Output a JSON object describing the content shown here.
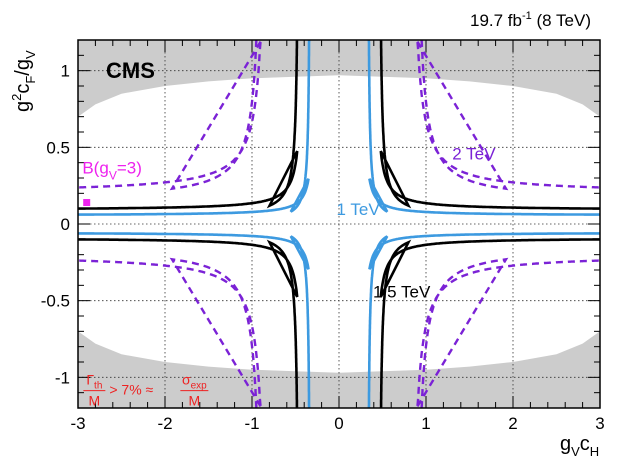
{
  "chart_data": {
    "type": "line",
    "lumi_label": "19.7 fb",
    "lumi_sup": "-1",
    "lumi_energy": " (8 TeV)",
    "experiment": "CMS",
    "xlabel": {
      "main": "g",
      "sub1": "V",
      "mid": "c",
      "sub2": "H"
    },
    "ylabel": {
      "pre": "g",
      "sup": "2",
      "mid": "c",
      "sub1": "F",
      "slash": "/g",
      "sub2": "V"
    },
    "xlim": [
      -3,
      3
    ],
    "ylim": [
      -1.2,
      1.2
    ],
    "x_ticks": [
      -3,
      -2,
      -1,
      0,
      1,
      2,
      3
    ],
    "y_ticks": [
      -1,
      -0.5,
      0,
      0.5,
      1
    ],
    "grid": true,
    "excluded_region": {
      "color": "#cccccc",
      "boundary": [
        [
          -3.0,
          0.7
        ],
        [
          -2.8,
          0.78
        ],
        [
          -2.5,
          0.85
        ],
        [
          -2.0,
          0.9
        ],
        [
          -1.5,
          0.93
        ],
        [
          -1.0,
          0.95
        ],
        [
          -0.5,
          0.96
        ],
        [
          0,
          0.97
        ],
        [
          0.5,
          0.96
        ],
        [
          1.0,
          0.95
        ],
        [
          1.5,
          0.93
        ],
        [
          2.0,
          0.9
        ],
        [
          2.5,
          0.85
        ],
        [
          2.8,
          0.78
        ],
        [
          3.0,
          0.7
        ]
      ]
    },
    "contours": [
      {
        "label": "1 TeV",
        "color": "#3d9ae0",
        "dash": false,
        "hx": 0.33,
        "hy": 0.055,
        "ox": 0.6,
        "oy": 0.09,
        "k": 0.028,
        "label_at": [
          0.22,
          0.06
        ]
      },
      {
        "label": "1.5 TeV",
        "color": "#000000",
        "dash": false,
        "hx": 0.46,
        "hy": 0.09,
        "ox": 0.6,
        "oy": 0.1,
        "k": 0.045,
        "label_at": [
          0.72,
          -0.48
        ]
      },
      {
        "label": "2 TeV",
        "color": "#7b22d6",
        "dash": true,
        "hx": 0.87,
        "hy": 0.2,
        "ox": 1.45,
        "oy": 0.2,
        "k": 0.14,
        "label_at": [
          1.55,
          0.42
        ]
      }
    ],
    "benchmark": {
      "label": "B(g",
      "sub": "V",
      "tail": "=3)",
      "x": -2.9,
      "y": 0.14,
      "color": "#ee22ee",
      "label_at": [
        -2.95,
        0.33
      ]
    },
    "width_annotation": {
      "color": "#ee2222",
      "num1": "Γ",
      "num1_sub": "th",
      "den1": "M",
      "mid": "> 7% ≈",
      "num2": "σ",
      "num2_sub": "exp",
      "den2": "M",
      "at": [
        -2.95,
        -1.1
      ]
    }
  }
}
